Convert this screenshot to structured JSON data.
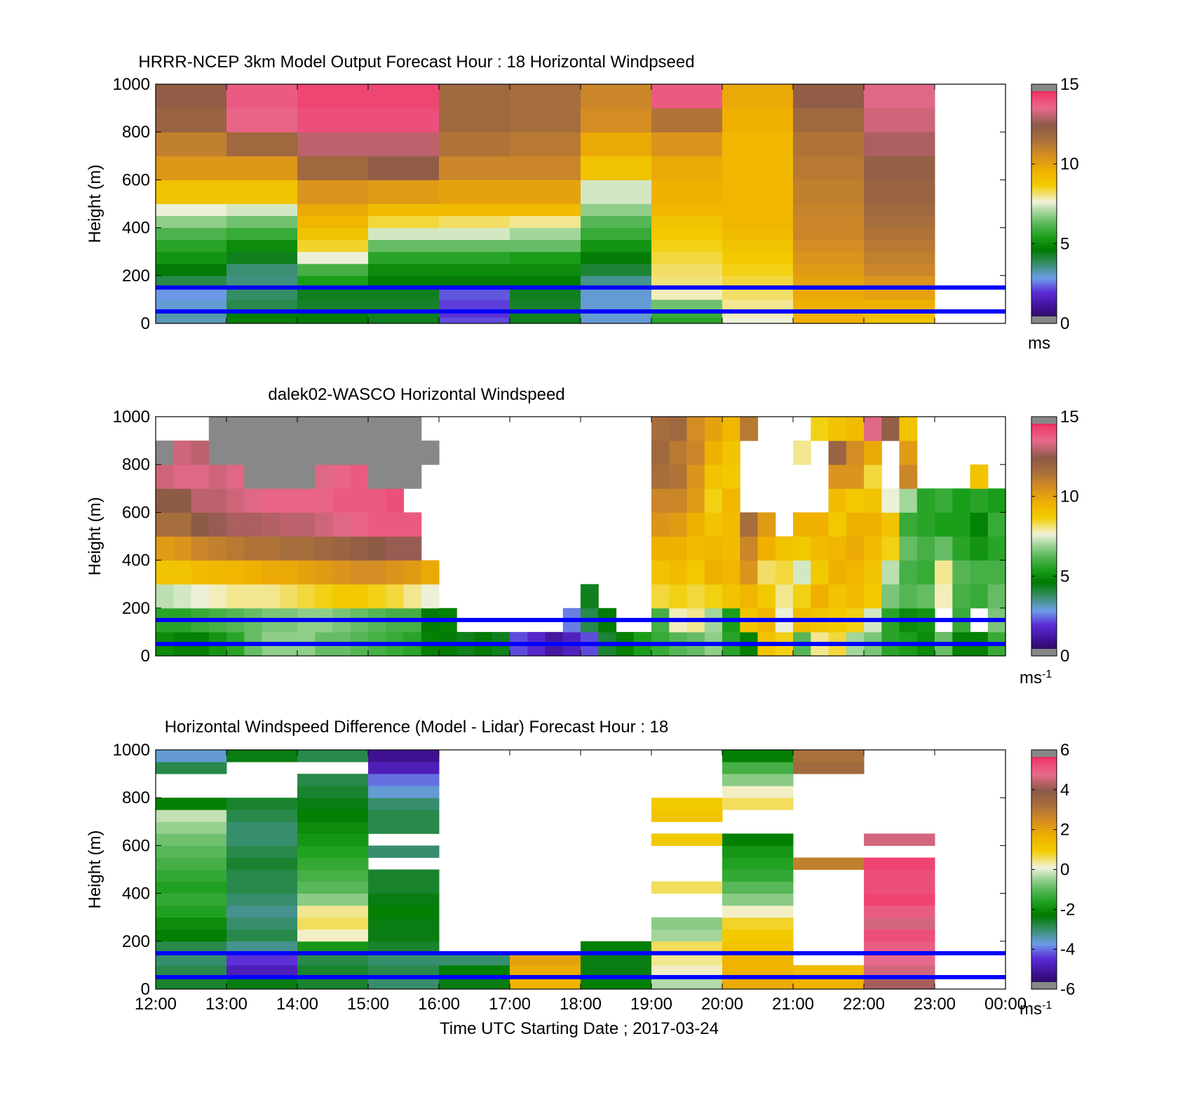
{
  "figure": {
    "xticks": [
      "12:00",
      "13:00",
      "14:00",
      "15:00",
      "16:00",
      "17:00",
      "18:00",
      "19:00",
      "20:00",
      "21:00",
      "22:00",
      "23:00",
      "00:00"
    ],
    "xlabel": "Time UTC  Starting Date ; 2017-03-24",
    "ylabel": "Height (m)",
    "ref_line_color": "#0000ff"
  },
  "chart_data": [
    {
      "type": "heatmap",
      "title": "HRRR-NCEP 3km Model Output   Forecast Hour : 18 Horizontal Windpseed",
      "ylabel": "Height (m)",
      "yticks": [
        "0",
        "200",
        "400",
        "600",
        "800",
        "1000"
      ],
      "ylim": [
        0,
        1000
      ],
      "xlim": [
        "12:00",
        "00:00"
      ],
      "colorbar": {
        "ticks": [
          "0",
          "5",
          "10",
          "15"
        ],
        "range": [
          0,
          15
        ],
        "unit": "ms",
        "unit_sup": ""
      },
      "reference_lines_m": [
        50,
        150
      ],
      "x": [
        "12:00",
        "13:00",
        "14:00",
        "15:00",
        "16:00",
        "17:00",
        "18:00",
        "19:00",
        "20:00",
        "21:00",
        "22:00"
      ],
      "y_edges": [
        0,
        25,
        50,
        100,
        150,
        200,
        250,
        300,
        350,
        400,
        450,
        500,
        600,
        700,
        800,
        900,
        1000
      ],
      "columns": [
        [
          3.2,
          3.3,
          3.0,
          2.8,
          4.0,
          4.6,
          5.2,
          5.6,
          6.1,
          6.8,
          7.6,
          9.0,
          10.3,
          11.0,
          12.0,
          12.3
        ],
        [
          4.8,
          4.6,
          4.0,
          3.8,
          3.6,
          3.7,
          4.4,
          5.0,
          5.8,
          6.5,
          7.4,
          9.0,
          10.3,
          11.8,
          13.6,
          13.8
        ],
        [
          4.6,
          4.6,
          4.3,
          4.4,
          5.4,
          6.0,
          7.6,
          8.5,
          9.0,
          9.4,
          9.8,
          10.4,
          11.8,
          13.0,
          14.0,
          14.2
        ],
        [
          4.4,
          4.4,
          4.3,
          4.4,
          4.7,
          5.0,
          5.6,
          6.4,
          7.4,
          8.4,
          9.2,
          10.2,
          12.3,
          13.0,
          14.0,
          14.2
        ],
        [
          2.2,
          2.0,
          2.1,
          2.3,
          4.6,
          5.0,
          5.6,
          6.4,
          7.4,
          8.2,
          9.2,
          10.0,
          10.8,
          11.4,
          11.8,
          11.8
        ],
        [
          4.4,
          4.4,
          4.3,
          4.4,
          4.7,
          5.0,
          5.4,
          6.4,
          7.0,
          8.0,
          9.2,
          10.0,
          10.8,
          11.2,
          11.6,
          11.6
        ],
        [
          3.0,
          3.0,
          3.0,
          3.0,
          3.5,
          4.2,
          4.6,
          5.2,
          5.8,
          6.2,
          6.8,
          7.4,
          9.0,
          9.8,
          10.6,
          10.8
        ],
        [
          5.6,
          5.8,
          6.5,
          7.8,
          8.1,
          8.2,
          8.4,
          8.6,
          8.8,
          9.0,
          9.4,
          9.6,
          9.8,
          10.4,
          11.4,
          13.8
        ],
        [
          7.6,
          7.8,
          8.0,
          8.2,
          8.4,
          8.6,
          8.8,
          9.0,
          9.2,
          9.4,
          9.4,
          9.4,
          9.4,
          9.4,
          9.6,
          9.8
        ],
        [
          9.6,
          9.6,
          9.6,
          9.8,
          10.0,
          10.2,
          10.4,
          10.6,
          10.8,
          10.8,
          10.9,
          11.0,
          11.2,
          11.4,
          11.8,
          12.3
        ],
        [
          9.0,
          9.2,
          9.6,
          10.0,
          10.4,
          10.8,
          11.0,
          11.2,
          11.4,
          11.6,
          11.8,
          12.0,
          12.2,
          12.8,
          13.2,
          13.4
        ]
      ]
    },
    {
      "type": "heatmap",
      "title": "dalek02-WASCO  Horizontal Windspeed",
      "ylabel": "Height (m)",
      "yticks": [
        "0",
        "200",
        "400",
        "600",
        "800",
        "1000"
      ],
      "ylim": [
        0,
        1000
      ],
      "xlim": [
        "12:00",
        "00:00"
      ],
      "colorbar": {
        "ticks": [
          "0",
          "5",
          "10",
          "15"
        ],
        "range": [
          0,
          15
        ],
        "unit": "ms",
        "unit_sup": "-1"
      },
      "reference_lines_m": [
        50,
        150
      ],
      "x_edges_hours": [
        12,
        12.25,
        12.5,
        12.75,
        13,
        13.25,
        13.5,
        13.75,
        14,
        14.25,
        14.5,
        14.75,
        15,
        15.25,
        15.5,
        15.75,
        16,
        16.25,
        16.5,
        16.75,
        17,
        17.25,
        17.5,
        17.75,
        18,
        18.25,
        18.5,
        18.75,
        19,
        19.25,
        19.5,
        19.75,
        20,
        20.25,
        20.5,
        20.75,
        21,
        21.25,
        21.5,
        21.75,
        22,
        22.25,
        22.5,
        22.75,
        23,
        23.25,
        23.5,
        23.75,
        24
      ],
      "y_edges": [
        0,
        100,
        200,
        300,
        400,
        500,
        600,
        700,
        800,
        900,
        1000
      ],
      "gray_value": -1,
      "columns": [
        [
          5.0,
          5.6,
          7.2,
          9.0,
          10.2,
          11.6,
          12.4,
          13.2,
          -1,
          null
        ],
        [
          4.8,
          5.6,
          7.4,
          9.0,
          10.4,
          11.6,
          12.4,
          13.4,
          13.2,
          null
        ],
        [
          4.8,
          5.8,
          7.6,
          9.2,
          10.8,
          12.4,
          13.0,
          13.4,
          13.0,
          null
        ],
        [
          5.2,
          6.0,
          7.8,
          9.4,
          11.0,
          12.6,
          13.0,
          13.2,
          -1,
          -1
        ],
        [
          5.6,
          6.2,
          8.0,
          9.4,
          11.2,
          12.8,
          13.2,
          13.4,
          -1,
          -1
        ],
        [
          6.4,
          6.4,
          8.0,
          9.6,
          11.4,
          12.8,
          13.4,
          -1,
          -1,
          -1
        ],
        [
          6.8,
          6.6,
          8.0,
          9.8,
          11.4,
          12.9,
          13.6,
          -1,
          -1,
          -1
        ],
        [
          6.8,
          6.6,
          8.2,
          9.8,
          11.6,
          13.0,
          13.6,
          -1,
          -1,
          -1
        ],
        [
          6.8,
          6.8,
          8.4,
          10.0,
          11.6,
          13.0,
          13.6,
          -1,
          -1,
          -1
        ],
        [
          6.4,
          6.8,
          8.6,
          10.2,
          11.8,
          13.2,
          13.6,
          13.4,
          -1,
          -1
        ],
        [
          6.4,
          6.6,
          8.8,
          10.4,
          12.0,
          13.4,
          13.8,
          13.6,
          -1,
          -1
        ],
        [
          6.2,
          6.4,
          8.8,
          10.6,
          12.2,
          13.6,
          13.8,
          13.8,
          -1,
          -1
        ],
        [
          6.0,
          6.2,
          8.6,
          10.6,
          12.4,
          13.8,
          13.8,
          -1,
          -1,
          -1
        ],
        [
          5.8,
          6.0,
          8.4,
          10.4,
          12.6,
          13.8,
          14.0,
          -1,
          -1,
          -1
        ],
        [
          5.6,
          6.0,
          8.0,
          10.2,
          12.6,
          13.8,
          null,
          -1,
          -1,
          -1
        ],
        [
          4.8,
          4.6,
          7.6,
          9.8,
          null,
          null,
          null,
          null,
          -1,
          null
        ],
        [
          4.6,
          4.8,
          null,
          null,
          null,
          null,
          null,
          null,
          null,
          null
        ],
        [
          4.4,
          null,
          null,
          null,
          null,
          null,
          null,
          null,
          null,
          null
        ],
        [
          4.6,
          null,
          null,
          null,
          null,
          null,
          null,
          null,
          null,
          null
        ],
        [
          4.4,
          null,
          null,
          null,
          null,
          null,
          null,
          null,
          null,
          null
        ],
        [
          2.2,
          null,
          null,
          null,
          null,
          null,
          null,
          null,
          null,
          null
        ],
        [
          1.8,
          null,
          null,
          null,
          null,
          null,
          null,
          null,
          null,
          null
        ],
        [
          1.2,
          null,
          null,
          null,
          null,
          null,
          null,
          null,
          null,
          null
        ],
        [
          1.6,
          2.6,
          null,
          null,
          null,
          null,
          null,
          null,
          null,
          null
        ],
        [
          2.2,
          4.0,
          4.4,
          null,
          null,
          null,
          null,
          null,
          null,
          null
        ],
        [
          4.2,
          4.6,
          null,
          null,
          null,
          null,
          null,
          null,
          null,
          null
        ],
        [
          4.8,
          null,
          null,
          null,
          null,
          null,
          null,
          null,
          null,
          null
        ],
        [
          5.4,
          null,
          null,
          null,
          null,
          null,
          null,
          null,
          null,
          null
        ],
        [
          5.8,
          6.0,
          8.4,
          9.0,
          9.6,
          10.4,
          10.8,
          11.6,
          11.8,
          11.6
        ],
        [
          6.2,
          7.8,
          8.6,
          9.2,
          9.6,
          10.2,
          10.8,
          11.4,
          11.2,
          11.8
        ],
        [
          6.4,
          8.0,
          8.4,
          8.8,
          9.2,
          9.6,
          10.2,
          10.4,
          10.8,
          10.6
        ],
        [
          6.8,
          7.0,
          8.6,
          9.6,
          9.4,
          9.0,
          8.6,
          9.0,
          9.6,
          10.0
        ],
        [
          5.6,
          5.4,
          9.0,
          9.4,
          9.2,
          9.2,
          9.4,
          8.8,
          9.0,
          9.4
        ],
        [
          4.8,
          9.0,
          9.4,
          10.4,
          10.8,
          11.6,
          null,
          null,
          null,
          11.2
        ],
        [
          9.0,
          9.4,
          8.8,
          8.2,
          9.6,
          10.2,
          null,
          null,
          null,
          null
        ],
        [
          8.6,
          7.6,
          8.0,
          8.4,
          9.0,
          null,
          null,
          null,
          null,
          null
        ],
        [
          6.2,
          9.2,
          8.6,
          7.4,
          8.8,
          9.6,
          null,
          null,
          8.0,
          null
        ],
        [
          8.0,
          9.0,
          9.6,
          8.8,
          9.2,
          9.6,
          null,
          null,
          null,
          8.6
        ],
        [
          8.4,
          8.8,
          9.0,
          9.6,
          9.4,
          8.8,
          9.2,
          10.4,
          12.0,
          9.0
        ],
        [
          7.0,
          8.6,
          9.2,
          9.4,
          9.8,
          9.6,
          8.8,
          10.4,
          10.6,
          9.2
        ],
        [
          6.6,
          7.4,
          8.8,
          9.0,
          9.2,
          9.6,
          9.0,
          8.4,
          9.8,
          13.4
        ],
        [
          5.6,
          5.6,
          6.6,
          7.2,
          8.6,
          9.0,
          7.6,
          null,
          null,
          12.2
        ],
        [
          5.4,
          5.0,
          6.2,
          6.0,
          6.4,
          5.8,
          7.0,
          10.8,
          10.2,
          9.0
        ],
        [
          5.0,
          5.2,
          6.4,
          5.8,
          6.0,
          5.6,
          5.6,
          null,
          null,
          null
        ],
        [
          6.4,
          null,
          7.8,
          8.0,
          6.4,
          5.4,
          5.8,
          null,
          null,
          null
        ],
        [
          4.8,
          5.8,
          6.0,
          6.2,
          5.6,
          5.4,
          5.4,
          null,
          null,
          null
        ],
        [
          4.8,
          null,
          5.8,
          6.0,
          5.2,
          4.8,
          5.6,
          9.0,
          null,
          null
        ],
        [
          5.8,
          6.6,
          6.4,
          6.0,
          5.6,
          5.8,
          5.4,
          null,
          null,
          null
        ]
      ]
    },
    {
      "type": "heatmap",
      "title": "Horizontal Windspeed Difference (Model - Lidar) Forecast Hour : 18",
      "ylabel": "Height (m)",
      "yticks": [
        "0",
        "200",
        "400",
        "600",
        "800",
        "1000"
      ],
      "ylim": [
        0,
        1000
      ],
      "xlim": [
        "12:00",
        "00:00"
      ],
      "colorbar": {
        "ticks": [
          "-6",
          "-4",
          "-2",
          "0",
          "2",
          "4",
          "6"
        ],
        "range": [
          -6,
          6
        ],
        "unit": "ms",
        "unit_sup": "-1"
      },
      "reference_lines_m": [
        50,
        150
      ],
      "x": [
        "12:00",
        "13:00",
        "14:00",
        "15:00",
        "16:00",
        "17:00",
        "18:00",
        "19:00",
        "20:00",
        "21:00",
        "22:00"
      ],
      "y_edges": [
        0,
        50,
        100,
        150,
        200,
        250,
        300,
        350,
        400,
        450,
        500,
        550,
        600,
        650,
        700,
        750,
        800,
        850,
        900,
        950,
        1000
      ],
      "columns": [
        [
          -2.6,
          -2.8,
          -3.0,
          -2.8,
          -2.2,
          -2.0,
          -1.6,
          -1.4,
          -1.6,
          -1.4,
          -1.2,
          -1.0,
          -0.8,
          -0.5,
          -0.2,
          -2.2,
          null,
          null,
          -2.8,
          -3.6
        ],
        [
          -2.4,
          -4.8,
          -4.4,
          -3.2,
          -2.8,
          -3.0,
          -3.2,
          -3.0,
          -2.8,
          -2.8,
          -2.6,
          -2.8,
          -3.0,
          -3.0,
          -2.8,
          -2.6,
          null,
          null,
          null,
          -2.4
        ],
        [
          -2.6,
          -2.6,
          -2.8,
          -1.8,
          0.2,
          0.6,
          0.4,
          -0.6,
          -1.0,
          -1.2,
          -1.4,
          -1.6,
          -1.8,
          -2.0,
          -2.2,
          -2.4,
          -2.6,
          -2.8,
          null,
          -2.8
        ],
        [
          -3.0,
          -2.8,
          -3.0,
          -2.6,
          -2.4,
          -2.4,
          -2.2,
          -2.4,
          -2.6,
          -2.6,
          null,
          -3.0,
          null,
          -2.8,
          -2.8,
          -3.0,
          -3.6,
          -4.0,
          -4.8,
          -5.2
        ],
        [
          -2.4,
          -2.2,
          -3.0,
          null,
          null,
          null,
          null,
          null,
          null,
          null,
          null,
          null,
          null,
          null,
          null,
          null,
          null,
          null,
          null,
          null
        ],
        [
          1.6,
          1.8,
          2.0,
          null,
          null,
          null,
          null,
          null,
          null,
          null,
          null,
          null,
          null,
          null,
          null,
          null,
          null,
          null,
          null,
          null
        ],
        [
          -2.2,
          -2.4,
          -2.4,
          -2.2,
          null,
          null,
          null,
          null,
          null,
          null,
          null,
          null,
          null,
          null,
          null,
          null,
          null,
          null,
          null,
          null
        ],
        [
          -0.3,
          0.2,
          0.4,
          0.6,
          -0.4,
          -0.6,
          null,
          null,
          0.6,
          null,
          null,
          null,
          1.0,
          null,
          1.2,
          1.0,
          null,
          null,
          null,
          null
        ],
        [
          1.8,
          1.6,
          1.6,
          1.2,
          1.0,
          0.8,
          0.2,
          -0.6,
          -1.0,
          -1.4,
          -1.6,
          -1.8,
          -2.2,
          null,
          null,
          0.6,
          0.2,
          -0.6,
          -1.2,
          -2.2
        ],
        [
          1.6,
          1.4,
          null,
          null,
          null,
          null,
          null,
          null,
          null,
          null,
          2.8,
          null,
          null,
          null,
          null,
          null,
          null,
          null,
          3.4,
          3.2
        ],
        [
          4.2,
          4.6,
          4.8,
          5.0,
          5.2,
          4.6,
          5.0,
          5.4,
          5.2,
          5.2,
          5.4,
          null,
          4.6,
          null,
          null,
          null,
          null,
          null,
          null,
          null
        ]
      ]
    }
  ]
}
